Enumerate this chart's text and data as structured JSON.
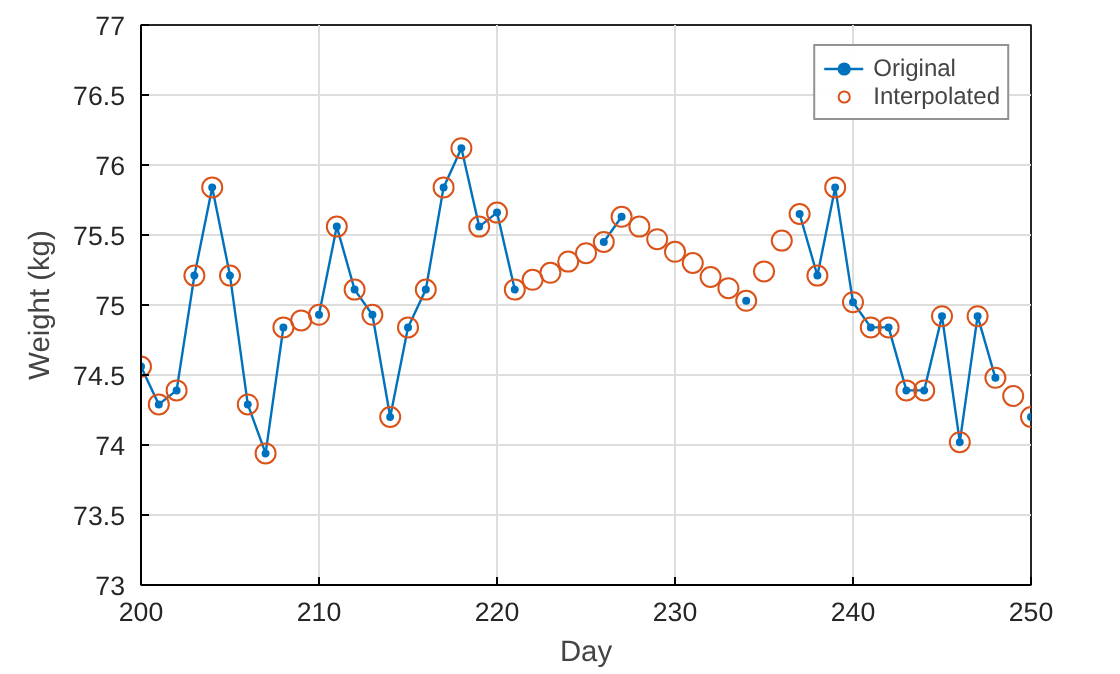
{
  "chart_data": {
    "type": "line",
    "xlabel": "Day",
    "ylabel": "Weight (kg)",
    "x": [
      200,
      201,
      202,
      203,
      204,
      205,
      206,
      207,
      208,
      209,
      210,
      211,
      212,
      213,
      214,
      215,
      216,
      217,
      218,
      219,
      220,
      221,
      222,
      223,
      224,
      225,
      226,
      227,
      228,
      229,
      230,
      231,
      232,
      233,
      234,
      235,
      236,
      237,
      238,
      239,
      240,
      241,
      242,
      243,
      244,
      245,
      246,
      247,
      248,
      249,
      250
    ],
    "series": [
      {
        "name": "Original",
        "color": "#0072bd",
        "marker": "circle",
        "values": [
          74.56,
          74.29,
          74.39,
          75.21,
          75.84,
          75.21,
          74.29,
          73.94,
          74.84,
          null,
          74.93,
          75.56,
          75.11,
          74.93,
          74.2,
          74.84,
          75.11,
          75.84,
          76.12,
          75.56,
          75.66,
          75.11,
          null,
          null,
          null,
          null,
          75.45,
          75.63,
          null,
          null,
          null,
          null,
          null,
          null,
          75.03,
          null,
          null,
          75.65,
          75.21,
          75.84,
          75.02,
          74.84,
          74.84,
          74.39,
          74.39,
          74.92,
          74.02,
          74.92,
          74.48,
          null,
          74.2
        ]
      },
      {
        "name": "Interpolated",
        "color": "#d95319",
        "type": "scatter",
        "marker": "circle",
        "values": [
          74.56,
          74.29,
          74.39,
          75.21,
          75.84,
          75.21,
          74.29,
          73.94,
          74.84,
          74.89,
          74.93,
          75.56,
          75.11,
          74.93,
          74.2,
          74.84,
          75.11,
          75.84,
          76.12,
          75.56,
          75.66,
          75.11,
          75.18,
          75.23,
          75.31,
          75.37,
          75.45,
          75.63,
          75.56,
          75.47,
          75.38,
          75.3,
          75.2,
          75.12,
          75.03,
          75.24,
          75.46,
          75.65,
          75.21,
          75.84,
          75.02,
          74.84,
          74.84,
          74.39,
          74.39,
          74.92,
          74.02,
          74.92,
          74.48,
          74.35,
          74.2
        ]
      }
    ],
    "xlim": [
      200,
      250
    ],
    "xticks": [
      200,
      210,
      220,
      230,
      240,
      250
    ],
    "ylim": [
      73,
      77
    ],
    "yticks": [
      73,
      73.5,
      74,
      74.5,
      75,
      75.5,
      76,
      76.5,
      77
    ],
    "grid": true,
    "legend": "top right"
  }
}
